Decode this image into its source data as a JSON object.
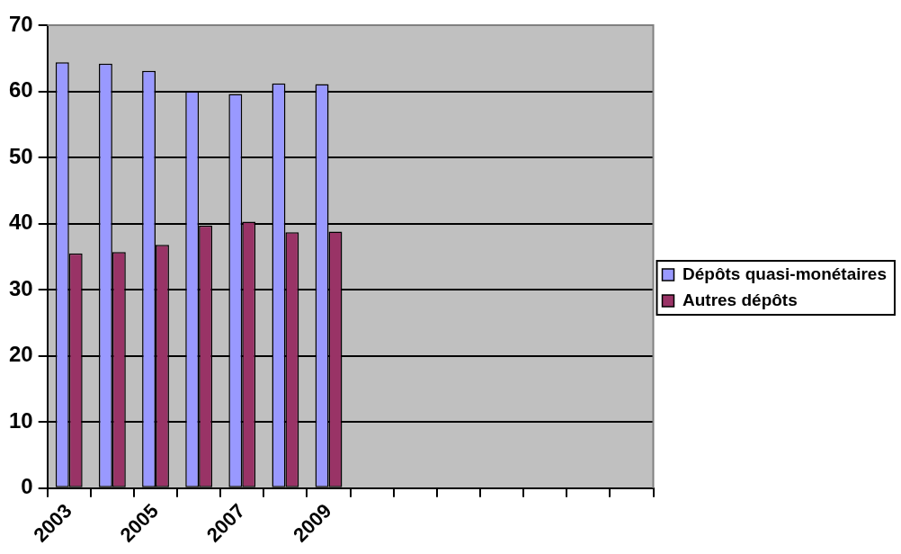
{
  "chart_data": {
    "type": "bar",
    "categories": [
      "2003",
      null,
      "2005",
      null,
      "2007",
      null,
      "2009",
      null,
      null,
      null,
      null,
      null,
      null,
      null
    ],
    "series": [
      {
        "name": "Dépôts quasi-monétaires",
        "color": "#9999ff",
        "values": [
          64.4,
          64.2,
          63.1,
          60.0,
          59.6,
          61.2,
          61.1,
          null,
          null,
          null,
          null,
          null,
          null,
          null
        ]
      },
      {
        "name": "Autres dépôts",
        "color": "#993366",
        "values": [
          35.5,
          35.7,
          36.8,
          39.7,
          40.3,
          38.7,
          38.8,
          null,
          null,
          null,
          null,
          null,
          null,
          null
        ]
      }
    ],
    "ylim": [
      0,
      70
    ],
    "yticks": [
      0,
      10,
      20,
      30,
      40,
      50,
      60,
      70
    ],
    "grid": "y",
    "legend": "right"
  }
}
